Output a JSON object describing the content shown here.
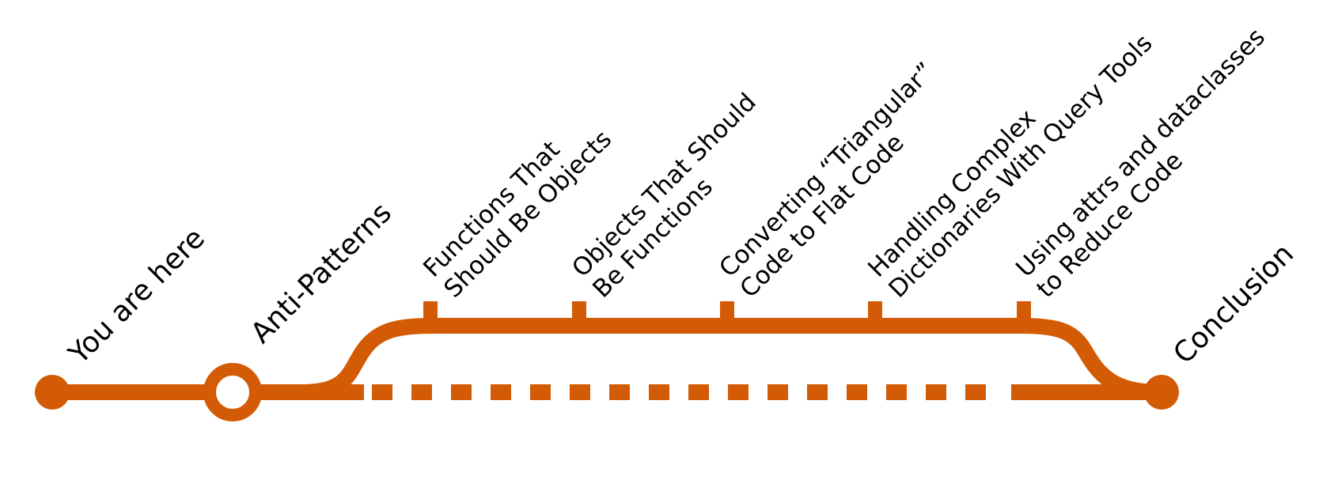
{
  "diagram": {
    "line_color": "#d35b05",
    "start_label": "You are here",
    "section_label": "Anti-Patterns",
    "end_label": "Conclusion",
    "stops": [
      {
        "line1": "Functions That",
        "line2": "Should Be Objects"
      },
      {
        "line1": "Objects That Should",
        "line2": "Be Functions"
      },
      {
        "line1": "Converting “Triangular”",
        "line2": "Code to Flat Code"
      },
      {
        "line1": "Handling Complex",
        "line2": "Dictionaries With Query Tools"
      },
      {
        "line1": "Using attrs and dataclasses",
        "line2": "to Reduce Code"
      }
    ]
  }
}
